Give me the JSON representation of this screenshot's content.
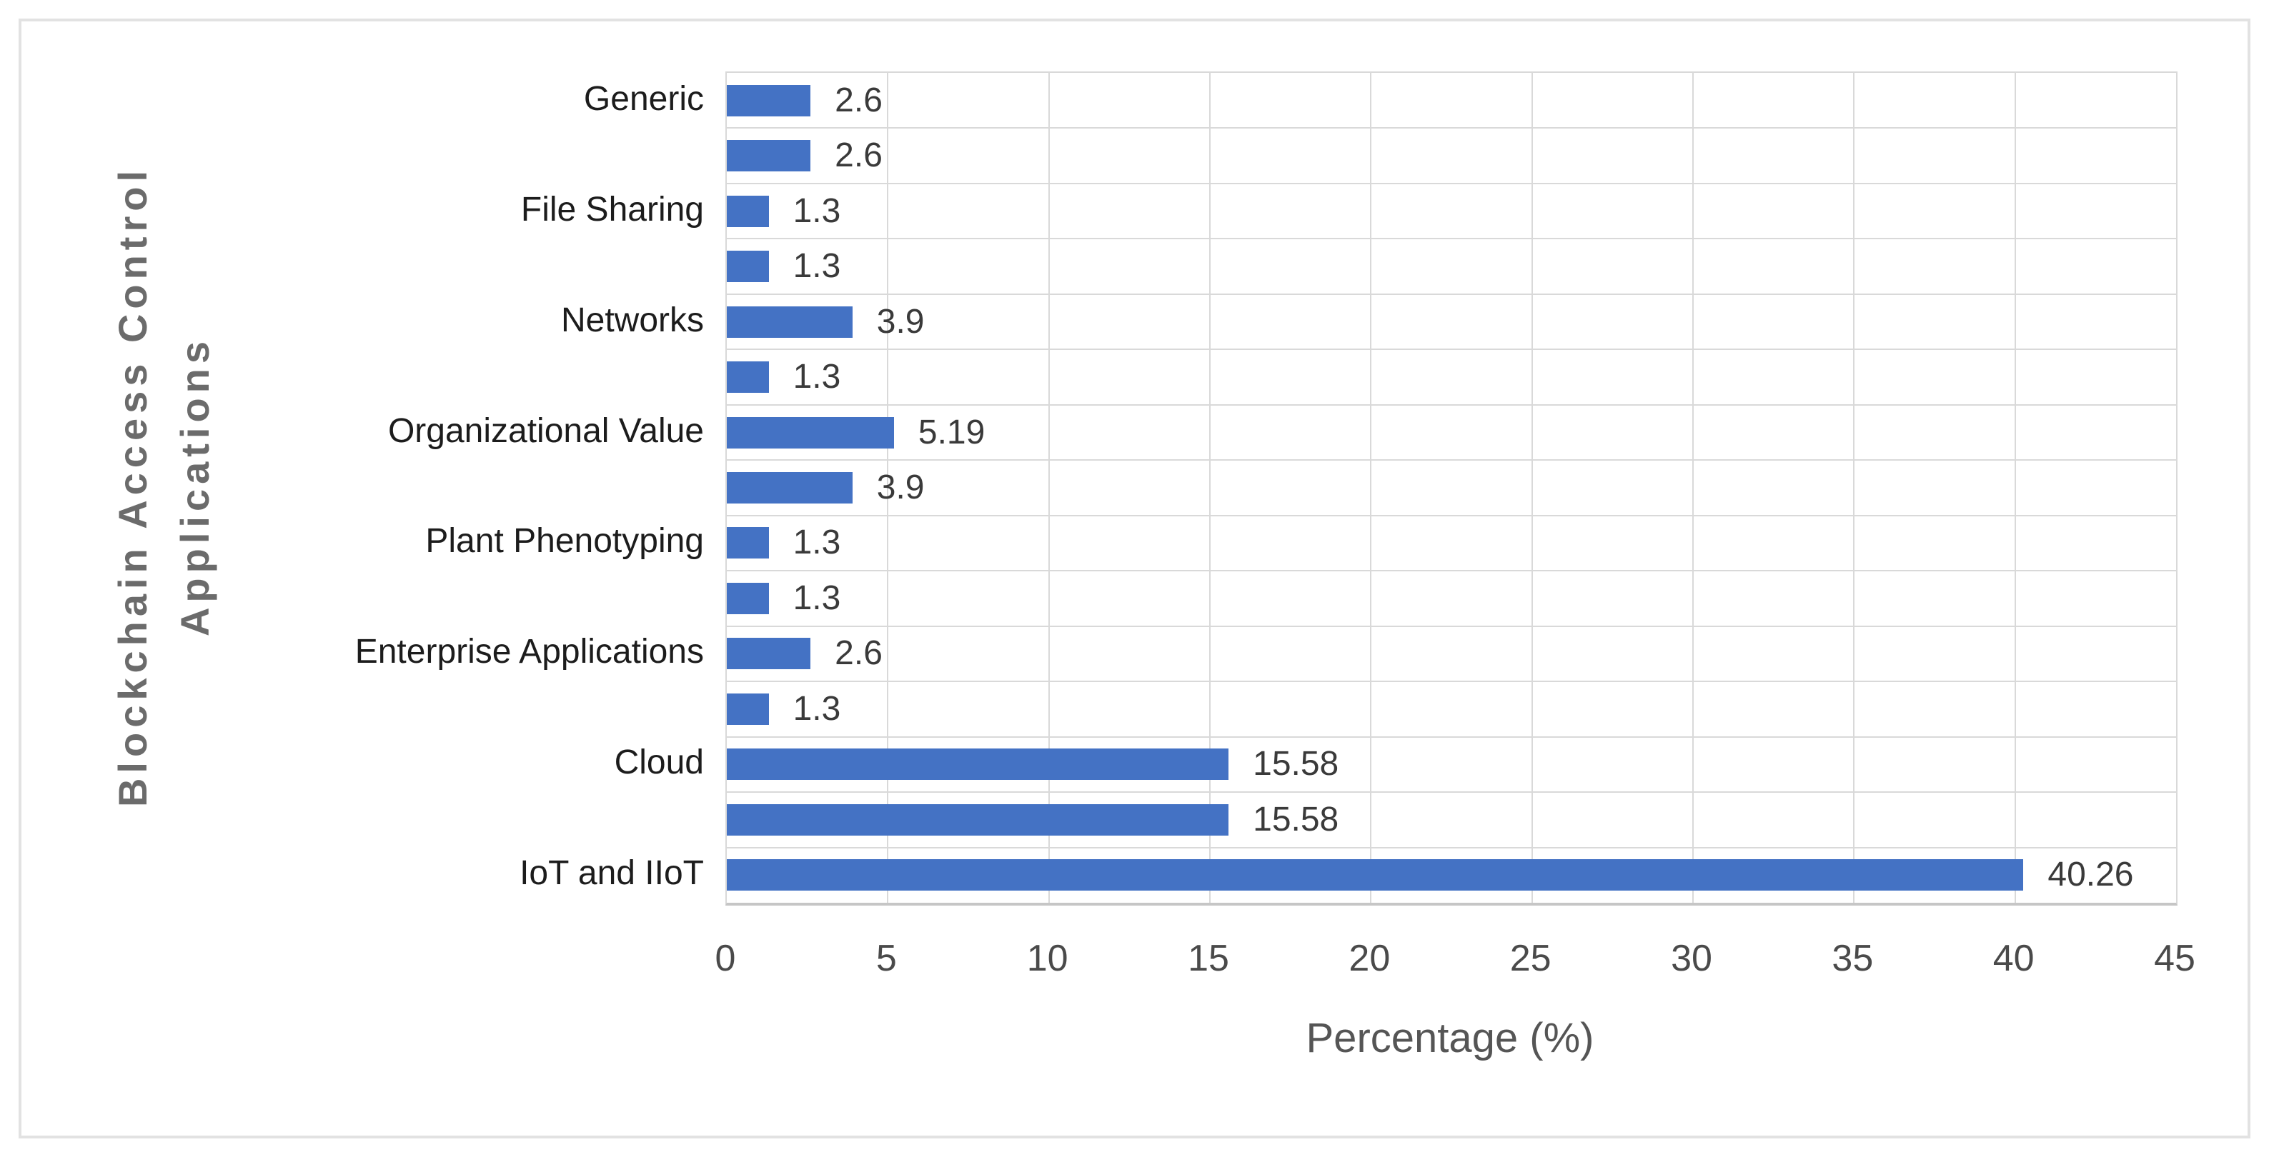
{
  "figure": {
    "background": "#ffffff",
    "border_color": "#e2e2e2"
  },
  "chart_data": {
    "type": "bar",
    "orientation": "horizontal",
    "title": "",
    "xlabel": "Percentage (%)",
    "ylabel": "Blockchain Access Control Applications",
    "ylabel_lines": [
      "Blockchain Access Control",
      "Applications"
    ],
    "xlim": [
      0,
      45
    ],
    "x_ticks": [
      "0",
      "5",
      "10",
      "15",
      "20",
      "25",
      "30",
      "35",
      "40",
      "45"
    ],
    "grid": true,
    "legend": false,
    "bar_color": "#4472C4",
    "gridline_color": "#d9d9d9",
    "categories": [
      "Generic",
      "File Sharing",
      "Networks",
      "Organizational Value",
      "Plant Phenotyping",
      "Enterprise Applications",
      "Cloud",
      "IoT and IIoT"
    ],
    "rows": [
      {
        "label": "Generic",
        "value": 2.6,
        "value_label": "2.6"
      },
      {
        "label": "",
        "value": 2.6,
        "value_label": "2.6"
      },
      {
        "label": "File Sharing",
        "value": 1.3,
        "value_label": "1.3"
      },
      {
        "label": "",
        "value": 1.3,
        "value_label": "1.3"
      },
      {
        "label": "Networks",
        "value": 3.9,
        "value_label": "3.9"
      },
      {
        "label": "",
        "value": 1.3,
        "value_label": "1.3"
      },
      {
        "label": "Organizational Value",
        "value": 5.19,
        "value_label": "5.19"
      },
      {
        "label": "",
        "value": 3.9,
        "value_label": "3.9"
      },
      {
        "label": "Plant Phenotyping",
        "value": 1.3,
        "value_label": "1.3"
      },
      {
        "label": "",
        "value": 1.3,
        "value_label": "1.3"
      },
      {
        "label": "Enterprise Applications",
        "value": 2.6,
        "value_label": "2.6"
      },
      {
        "label": "",
        "value": 1.3,
        "value_label": "1.3"
      },
      {
        "label": "Cloud",
        "value": 15.58,
        "value_label": "15.58"
      },
      {
        "label": "",
        "value": 15.58,
        "value_label": "15.58"
      },
      {
        "label": "IoT and IIoT",
        "value": 40.26,
        "value_label": "40.26"
      }
    ]
  }
}
